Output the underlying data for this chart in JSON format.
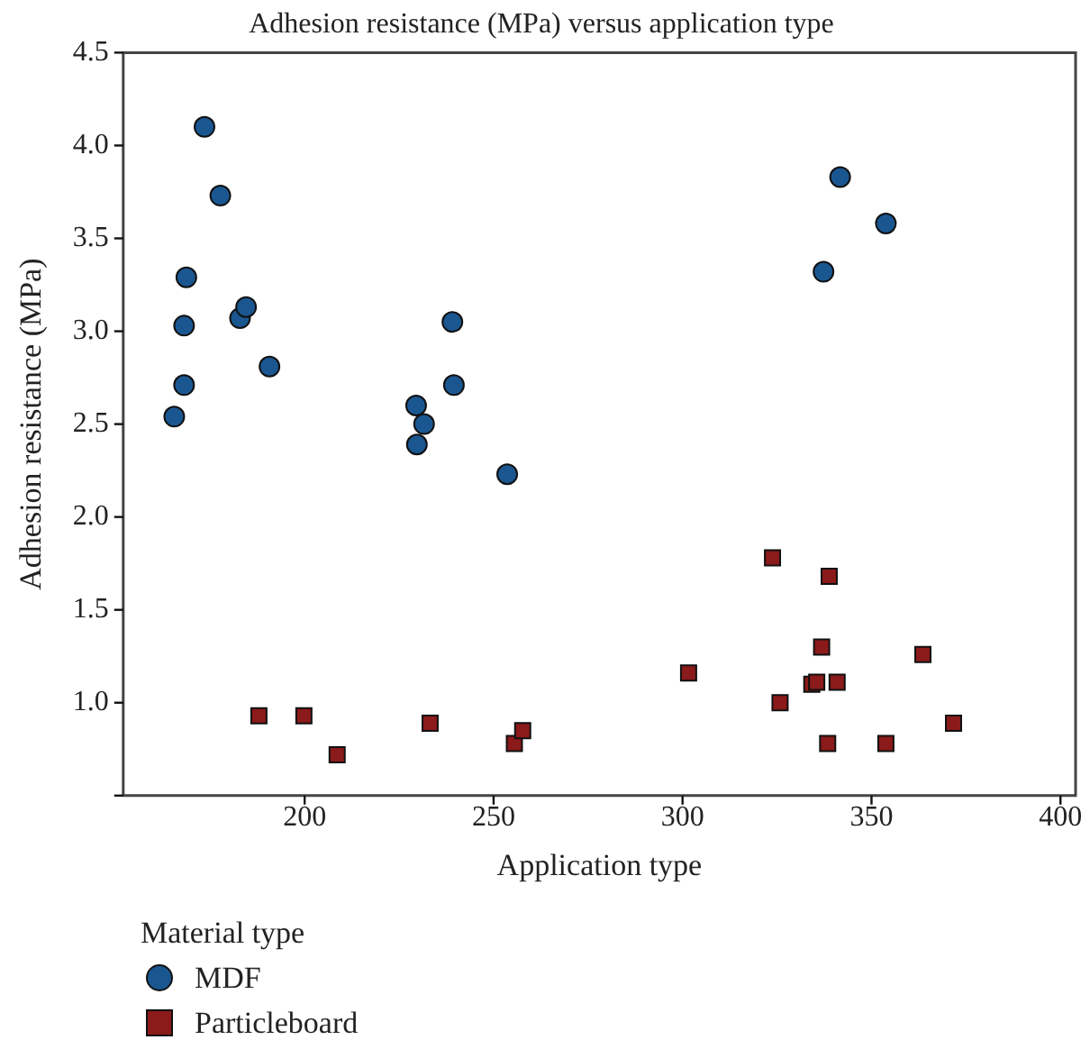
{
  "chart_data": {
    "type": "scatter",
    "title": "Adhesion resistance (MPa) versus application type",
    "xlabel": "Application type",
    "ylabel": "Adhesion resistance (MPa)",
    "legend_title": "Material type",
    "legend": "bottom",
    "grid": false,
    "xlim": [
      152,
      404
    ],
    "xticks": [
      200,
      250,
      300,
      350,
      400
    ],
    "ylim": [
      0.5,
      4.5
    ],
    "yticks": [
      {
        "value": 0.5,
        "label": null
      },
      {
        "value": 1.0,
        "label": "1.0"
      },
      {
        "value": 1.5,
        "label": "1.5"
      },
      {
        "value": 2.0,
        "label": "2.0"
      },
      {
        "value": 2.5,
        "label": "2.5"
      },
      {
        "value": 3.0,
        "label": "3.0"
      },
      {
        "value": 3.5,
        "label": "3.5"
      },
      {
        "value": 4.0,
        "label": "4.0"
      },
      {
        "value": 4.5,
        "label": "4.5"
      }
    ],
    "series": [
      {
        "name": "MDF",
        "color": "#1a5791",
        "marker": "circle",
        "x": [
          173.5,
          177.7,
          168.7,
          168.1,
          168.1,
          165.5,
          182.9,
          184.5,
          190.7,
          229.5,
          231.6,
          229.7,
          239.1,
          239.5,
          253.6,
          341.7,
          353.8,
          337.3
        ],
        "values": [
          4.1,
          3.73,
          3.29,
          3.03,
          2.71,
          2.54,
          3.07,
          3.13,
          2.81,
          2.6,
          2.5,
          2.39,
          3.05,
          2.71,
          2.23,
          3.83,
          3.58,
          3.32
        ]
      },
      {
        "name": "Particleboard",
        "color": "#8b1a1a",
        "marker": "square",
        "x": [
          187.9,
          199.8,
          208.6,
          233.2,
          255.5,
          257.7,
          301.6,
          323.8,
          338.8,
          336.8,
          334.2,
          335.5,
          340.9,
          325.8,
          363.6,
          371.7,
          338.4,
          353.8
        ],
        "values": [
          0.93,
          0.93,
          0.72,
          0.89,
          0.78,
          0.85,
          1.16,
          1.78,
          1.68,
          1.3,
          1.1,
          1.11,
          1.11,
          1.0,
          1.26,
          0.89,
          0.78,
          0.78
        ]
      }
    ]
  }
}
